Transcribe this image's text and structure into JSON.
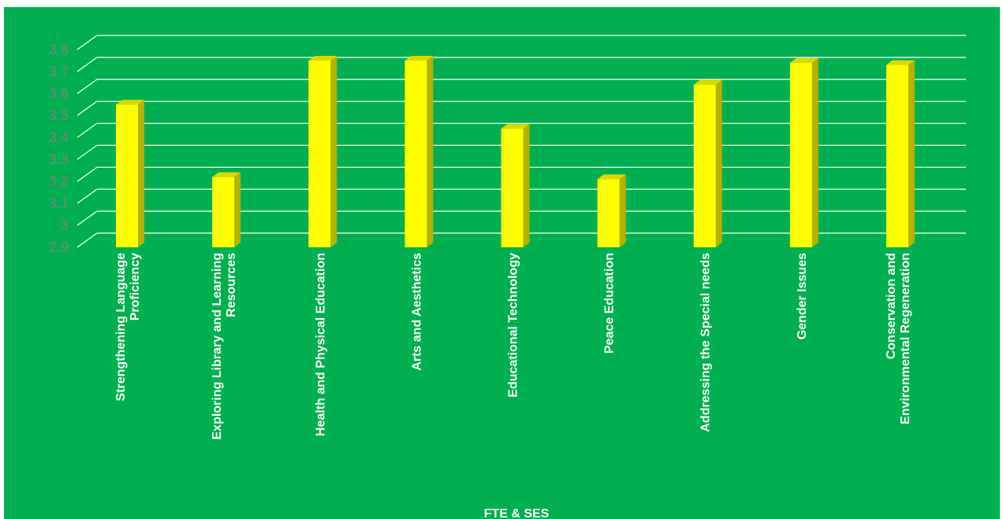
{
  "chart_data": {
    "type": "bar",
    "categories": [
      "Strengthening Language Proficiency",
      "Exploring Library and Learning Resources",
      "Health and Physical Education",
      "Arts and Aesthetics",
      "Educational Technology",
      "Peace Education",
      "Addressing the Special needs",
      "Gender Issues",
      "Conservation and Environmental Regeneration"
    ],
    "category_lines": [
      [
        "Strengthening Language",
        "Proficiency"
      ],
      [
        "Exploring Library and Learning",
        "Resources"
      ],
      [
        "Health and Physical Education"
      ],
      [
        "Arts and Aesthetics"
      ],
      [
        "Educational Technology"
      ],
      [
        "Peace Education"
      ],
      [
        "Addressing the Special needs"
      ],
      [
        "Gender Issues"
      ],
      [
        "Conservation and",
        "Environmental Regeneration"
      ]
    ],
    "values": [
      3.55,
      3.22,
      3.75,
      3.75,
      3.44,
      3.21,
      3.64,
      3.74,
      3.73
    ],
    "yticks": [
      "2.9",
      "3",
      "3.1",
      "3.2",
      "3.3",
      "3.4",
      "3.5",
      "3.6",
      "3.7",
      "3.8"
    ],
    "ylim": [
      2.9,
      3.8
    ],
    "xlabel": "FTE & SES",
    "ylabel": "",
    "title": "",
    "grid": true,
    "three_d": true,
    "colors": {
      "background": "#00b050",
      "bar_front": "#ffff00",
      "bar_side": "#b3b300",
      "bar_top": "#d9d900",
      "gridline": "#ffffff",
      "tick_label": "#7f7f7f",
      "category_label": "#ffffff"
    }
  }
}
